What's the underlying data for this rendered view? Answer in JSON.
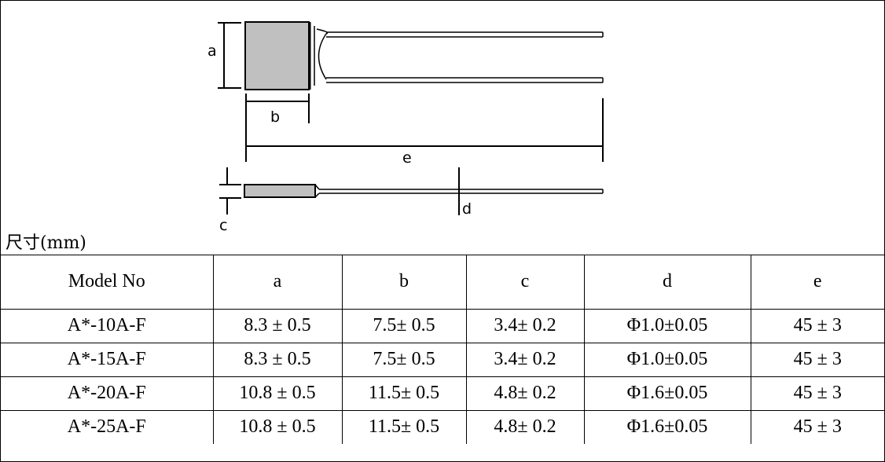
{
  "diagram": {
    "labels": {
      "a": "a",
      "b": "b",
      "c": "c",
      "d": "d",
      "e": "e"
    },
    "unit_label": "尺寸(mm)"
  },
  "table": {
    "headers": [
      "Model No",
      "a",
      "b",
      "c",
      "d",
      "e"
    ],
    "rows": [
      [
        "A*-10A-F",
        "8.3 ± 0.5",
        "7.5± 0.5",
        "3.4± 0.2",
        "Φ1.0±0.05",
        "45 ± 3"
      ],
      [
        "A*-15A-F",
        "8.3 ± 0.5",
        "7.5± 0.5",
        "3.4± 0.2",
        "Φ1.0±0.05",
        "45 ± 3"
      ],
      [
        "A*-20A-F",
        "10.8 ± 0.5",
        "11.5± 0.5",
        "4.8± 0.2",
        "Φ1.6±0.05",
        "45 ± 3"
      ],
      [
        "A*-25A-F",
        "10.8 ± 0.5",
        "11.5± 0.5",
        "4.8± 0.2",
        "Φ1.6±0.05",
        "45 ± 3"
      ]
    ]
  }
}
